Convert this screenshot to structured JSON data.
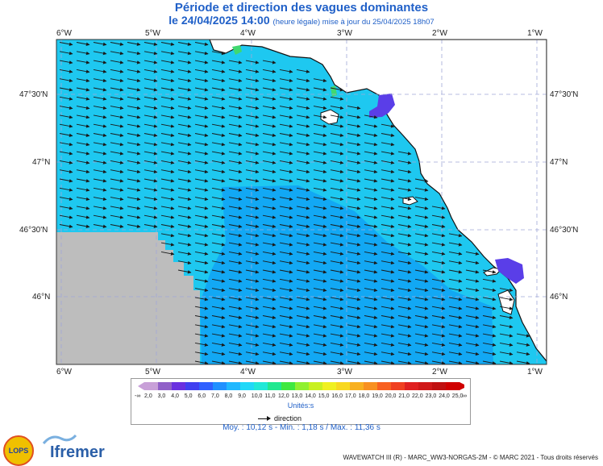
{
  "title": "Période et direction des vagues dominantes",
  "subtitle_main": "le 24/04/2025 14:00",
  "subtitle_note": "(heure légale) mise à jour du 25/04/2025 18h07",
  "lon_labels": [
    "6°W",
    "5°W",
    "4°W",
    "3°W",
    "2°W",
    "1°W"
  ],
  "lat_labels": [
    "47°30'N",
    "47°N",
    "46°30'N",
    "46°N"
  ],
  "legend": {
    "ticks": [
      "-∞",
      "2,0",
      "3,0",
      "4,0",
      "5,0",
      "6,0",
      "7,0",
      "8,0",
      "9,0",
      "10,0",
      "11,0",
      "12,0",
      "13,0",
      "14,0",
      "15,0",
      "16,0",
      "17,0",
      "18,0",
      "19,0",
      "20,0",
      "21,0",
      "22,0",
      "23,0",
      "24,0",
      "25,0",
      "∞"
    ],
    "colors": [
      "#c8a0d8",
      "#9060c8",
      "#6a30e0",
      "#4040f0",
      "#3060ff",
      "#2090ff",
      "#20b8ff",
      "#20d8f8",
      "#20e8d8",
      "#20e890",
      "#40e840",
      "#90f030",
      "#c8f020",
      "#f0f020",
      "#f8d820",
      "#f8b020",
      "#f89020",
      "#f86020",
      "#f04020",
      "#e02020",
      "#d01818",
      "#c01010",
      "#d00000"
    ],
    "units": "Unités:s"
  },
  "direction_label": "direction",
  "stats": "Moy. : 10,12 s  -  Min. : 1,18 s / Max. : 11,36 s",
  "logos": {
    "lops": "LOPS",
    "ifremer": "Ifremer"
  },
  "footer": "WAVEWATCH III (R) - MARC_WW3-NORGAS-2M - © MARC 2021 - Tous droits réservés",
  "map_colors": {
    "sea_main": "#1ec8f0",
    "sea_dark": "#12a8f4",
    "land": "#ffffff",
    "nodata": "#bdbdbd",
    "purple": "#5a3ee8",
    "green": "#40d870",
    "grid": "#a0a8d8"
  }
}
